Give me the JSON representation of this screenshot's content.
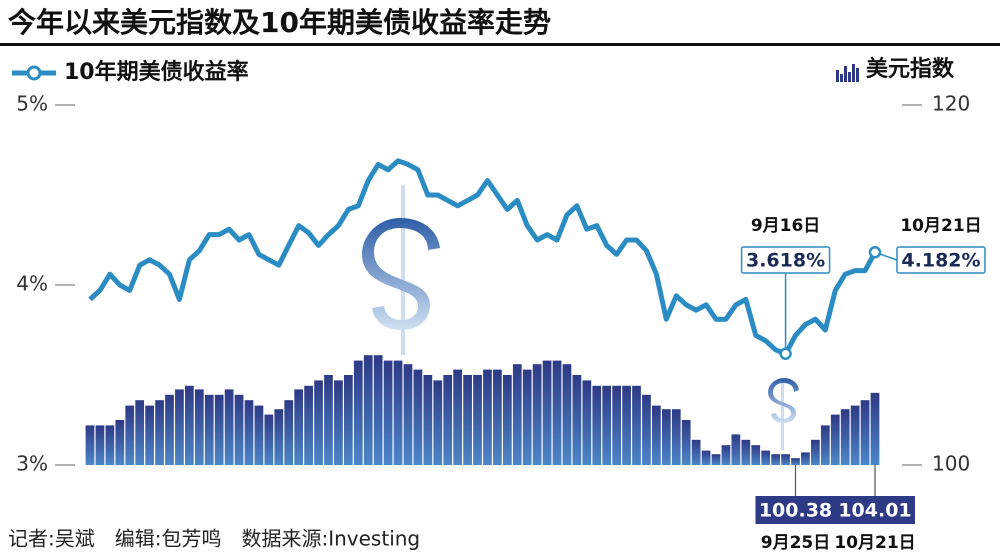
{
  "chart_data": {
    "type": "line-bar",
    "title": "今年以来美元指数及10年期美债收益率走势",
    "footer": "记者:吴斌　编辑:包芳鸣　数据来源:Investing",
    "categories": [
      null,
      null,
      null,
      null,
      null,
      null,
      null,
      null,
      null,
      null,
      null,
      null,
      null,
      null,
      null,
      null,
      null,
      null,
      null,
      null,
      null,
      null,
      null,
      null,
      null,
      null,
      null,
      null,
      null,
      null,
      null,
      null,
      null,
      null,
      null,
      null,
      null,
      null,
      null,
      null,
      null,
      null,
      null,
      null,
      null,
      null,
      null,
      null,
      null,
      null,
      null,
      null,
      null,
      null,
      null,
      null,
      null,
      null,
      null,
      null,
      null,
      null,
      null,
      null,
      null,
      null,
      null,
      null,
      null,
      null,
      "9月16日",
      "9月25日",
      null,
      null,
      null,
      null,
      null,
      null,
      null,
      "10月21日"
    ],
    "ylim": [
      3,
      5
    ],
    "yticks": [
      {
        "value": 5,
        "label": "5%"
      },
      {
        "value": 4,
        "label": "4%"
      },
      {
        "value": 3,
        "label": "3%"
      }
    ],
    "y2lim": [
      100,
      120
    ],
    "y2ticks": [
      120,
      100
    ],
    "series": [
      {
        "name": "10年期美债收益率",
        "type": "line",
        "color": "#2b8cc4",
        "values": [
          3.92,
          3.97,
          4.06,
          4.0,
          3.97,
          4.11,
          4.14,
          4.11,
          4.06,
          3.92,
          4.14,
          4.19,
          4.28,
          4.28,
          4.31,
          4.25,
          4.28,
          4.17,
          4.14,
          4.11,
          4.22,
          4.33,
          4.29,
          4.22,
          4.28,
          4.33,
          4.42,
          4.44,
          4.58,
          4.67,
          4.64,
          4.69,
          4.67,
          4.64,
          4.5,
          4.5,
          4.47,
          4.44,
          4.47,
          4.5,
          4.58,
          4.5,
          4.42,
          4.47,
          4.33,
          4.25,
          4.28,
          4.25,
          4.39,
          4.44,
          4.31,
          4.33,
          4.22,
          4.17,
          4.25,
          4.25,
          4.19,
          4.06,
          3.81,
          3.94,
          3.89,
          3.86,
          3.89,
          3.81,
          3.81,
          3.89,
          3.92,
          3.72,
          3.69,
          3.64,
          3.618,
          3.72,
          3.78,
          3.81,
          3.75,
          3.97,
          4.06,
          4.08,
          4.08,
          4.182
        ],
        "value_labels": [
          null,
          null,
          null,
          null,
          null,
          null,
          null,
          null,
          null,
          null,
          null,
          null,
          null,
          null,
          null,
          null,
          null,
          null,
          null,
          null,
          null,
          null,
          null,
          null,
          null,
          null,
          null,
          null,
          null,
          null,
          null,
          null,
          null,
          null,
          null,
          null,
          null,
          null,
          null,
          null,
          null,
          null,
          null,
          null,
          null,
          null,
          null,
          null,
          null,
          null,
          null,
          null,
          null,
          null,
          null,
          null,
          null,
          null,
          null,
          null,
          null,
          null,
          null,
          null,
          null,
          null,
          null,
          null,
          null,
          null,
          "3.618%",
          null,
          null,
          null,
          null,
          null,
          null,
          null,
          null,
          "4.182%"
        ]
      },
      {
        "name": "美元指数",
        "type": "bar",
        "axis": "y2",
        "color": "#2e3a86",
        "values": [
          102.2,
          102.2,
          102.2,
          102.5,
          103.3,
          103.6,
          103.3,
          103.6,
          103.9,
          104.2,
          104.4,
          104.2,
          103.9,
          103.9,
          104.2,
          103.9,
          103.6,
          103.3,
          102.8,
          103.1,
          103.6,
          104.2,
          104.4,
          104.7,
          105,
          104.7,
          105,
          105.8,
          106.1,
          106.1,
          105.8,
          105.8,
          105.6,
          105.3,
          105,
          104.7,
          105,
          105.3,
          105,
          105,
          105.3,
          105.3,
          105,
          105.6,
          105.3,
          105.6,
          105.8,
          105.8,
          105.6,
          105,
          104.7,
          104.4,
          104.4,
          104.4,
          104.4,
          104.4,
          103.9,
          103.3,
          103.1,
          103.1,
          102.5,
          101.4,
          100.8,
          100.6,
          101.1,
          101.7,
          101.4,
          101.1,
          100.8,
          100.6,
          100.6,
          100.38,
          100.7,
          101.4,
          102.2,
          102.8,
          103.1,
          103.3,
          103.6,
          104.01
        ],
        "value_labels": [
          null,
          null,
          null,
          null,
          null,
          null,
          null,
          null,
          null,
          null,
          null,
          null,
          null,
          null,
          null,
          null,
          null,
          null,
          null,
          null,
          null,
          null,
          null,
          null,
          null,
          null,
          null,
          null,
          null,
          null,
          null,
          null,
          null,
          null,
          null,
          null,
          null,
          null,
          null,
          null,
          null,
          null,
          null,
          null,
          null,
          null,
          null,
          null,
          null,
          null,
          null,
          null,
          null,
          null,
          null,
          null,
          null,
          null,
          null,
          null,
          null,
          null,
          null,
          null,
          null,
          null,
          null,
          null,
          null,
          null,
          null,
          "100.38",
          null,
          null,
          null,
          null,
          null,
          null,
          null,
          "104.01"
        ]
      }
    ]
  }
}
